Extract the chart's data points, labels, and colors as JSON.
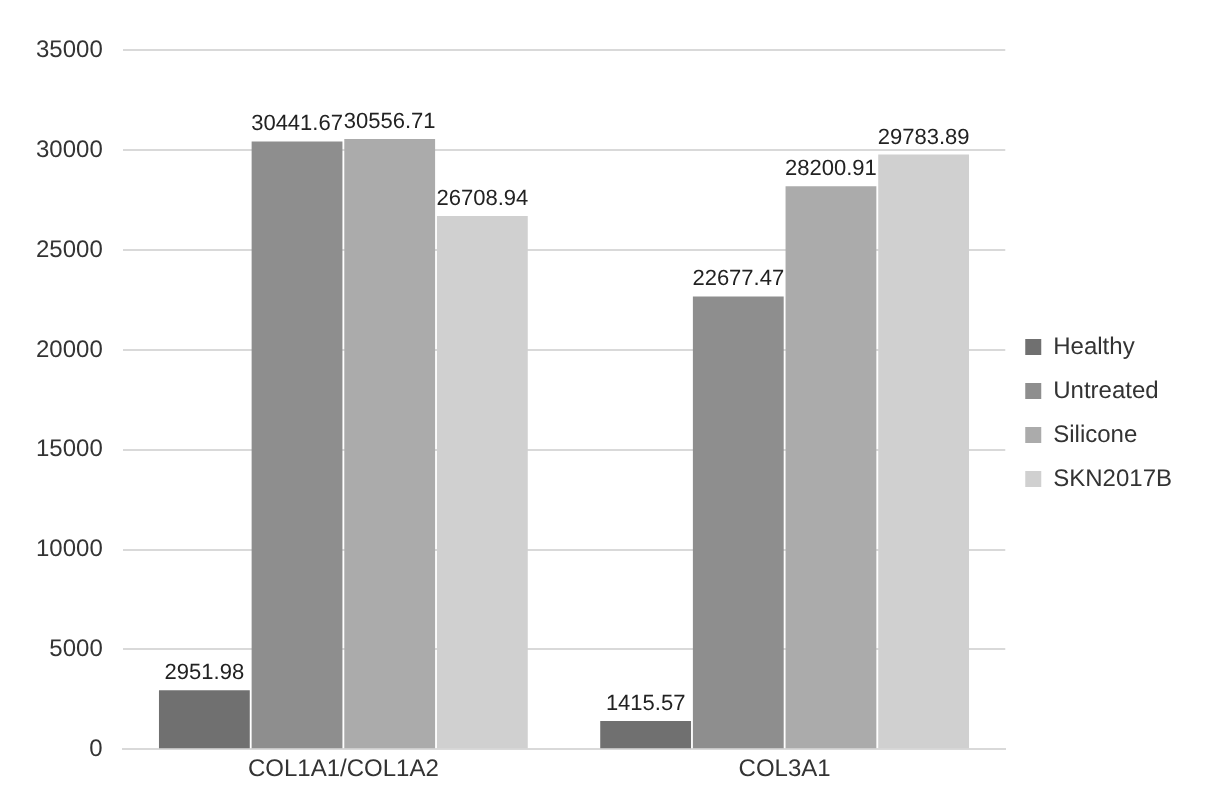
{
  "chart_data": {
    "type": "bar",
    "categories": [
      "COL1A1/COL1A2",
      "COL3A1"
    ],
    "series": [
      {
        "name": "Healthy",
        "color": "#707070",
        "values": [
          2951.98,
          1415.57
        ]
      },
      {
        "name": "Untreated",
        "color": "#8e8e8e",
        "values": [
          30441.67,
          22677.47
        ]
      },
      {
        "name": "Silicone",
        "color": "#ababab",
        "values": [
          30556.71,
          28200.91
        ]
      },
      {
        "name": "SKN2017B",
        "color": "#d0d0d0",
        "values": [
          26708.94,
          29783.89
        ]
      }
    ],
    "ylim": [
      0,
      35000
    ],
    "yticks": [
      0,
      5000,
      10000,
      15000,
      20000,
      25000,
      30000,
      35000
    ],
    "grid": "y",
    "legend": "right",
    "data_labels": true
  }
}
